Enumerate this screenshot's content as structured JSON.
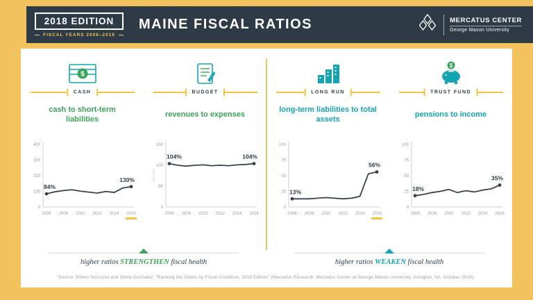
{
  "colors": {
    "background_yellow": "#F2C35C",
    "accent_yellow": "#F6C343",
    "navy": "#2E3B47",
    "green": "#3AA45B",
    "teal": "#14A5B4",
    "chart_line": "#37424D",
    "axis_gray": "#cfcfcf",
    "tick_text_gray": "#9b9b9b"
  },
  "header": {
    "edition": "2018 EDITION",
    "fiscal_years": "FISCAL YEARS 2006–2016",
    "title": "MAINE FISCAL RATIOS",
    "logo_name": "MERCATUS CENTER",
    "logo_sub": "George Mason University"
  },
  "sections": [
    {
      "label": "CASH",
      "subtitle": "cash to short-term liabilities",
      "theme": "green"
    },
    {
      "label": "BUDGET",
      "subtitle": "revenues to expenses",
      "theme": "green"
    },
    {
      "label": "LONG RUN",
      "subtitle": "long-term liabilities to total assets",
      "theme": "teal"
    },
    {
      "label": "TRUST FUND",
      "subtitle": "pensions to income",
      "theme": "teal"
    }
  ],
  "footer": {
    "left": {
      "prefix": "higher ratios",
      "keyword": "STRENGTHEN",
      "suffix": "fiscal health"
    },
    "right": {
      "prefix": "higher ratios",
      "keyword": "WEAKEN",
      "suffix": "fiscal health"
    }
  },
  "source": "Source: Eileen Norcross and Olivia Gonzalez, \"Ranking the States by Fiscal Condition, 2018 Edition\" (Mercatus Research, Mercatus Center at George Mason University, Arlington, VA, October 2018).",
  "chart_data": [
    {
      "type": "line",
      "title": "cash to short-term liabilities",
      "x": [
        2006,
        2007,
        2008,
        2009,
        2010,
        2011,
        2012,
        2013,
        2014,
        2015,
        2016
      ],
      "xticks": [
        2006,
        2008,
        2010,
        2012,
        2014,
        2016
      ],
      "values": [
        84,
        97,
        105,
        110,
        101,
        95,
        89,
        99,
        93,
        121,
        130
      ],
      "ylim": [
        0,
        400
      ],
      "yticks": [
        0,
        100,
        200,
        300,
        400
      ],
      "start_label": "84%",
      "end_label": "130%",
      "highlight_final_year": true
    },
    {
      "type": "line",
      "title": "revenues to expenses",
      "x": [
        2006,
        2007,
        2008,
        2009,
        2010,
        2011,
        2012,
        2013,
        2014,
        2015,
        2016
      ],
      "xticks": [
        2006,
        2008,
        2010,
        2012,
        2014,
        2016
      ],
      "values": [
        104,
        100,
        98,
        100,
        101,
        99,
        100,
        99,
        101,
        102,
        104
      ],
      "ylim": [
        0,
        150
      ],
      "yticks": [
        0,
        50,
        100,
        150
      ],
      "start_label": "104%",
      "end_label": "104%",
      "y_axis_label": "percent",
      "highlight_final_year": false
    },
    {
      "type": "line",
      "title": "long-term liabilities to total assets",
      "x": [
        2006,
        2007,
        2008,
        2009,
        2010,
        2011,
        2012,
        2013,
        2014,
        2015,
        2016
      ],
      "xticks": [
        2006,
        2008,
        2010,
        2012,
        2014,
        2016
      ],
      "values": [
        13,
        13,
        13,
        14,
        15,
        14,
        13,
        14,
        17,
        53,
        56
      ],
      "ylim": [
        0,
        100
      ],
      "yticks": [
        0,
        25,
        50,
        75,
        100
      ],
      "start_label": "13%",
      "end_label": "56%",
      "highlight_final_year": true
    },
    {
      "type": "line",
      "title": "pensions to income",
      "x": [
        2006,
        2007,
        2008,
        2009,
        2010,
        2011,
        2012,
        2013,
        2014,
        2015,
        2016
      ],
      "xticks": [
        2006,
        2008,
        2010,
        2012,
        2014,
        2016
      ],
      "values": [
        18,
        20,
        23,
        25,
        28,
        23,
        26,
        24,
        27,
        29,
        35
      ],
      "ylim": [
        0,
        100
      ],
      "yticks": [
        0,
        25,
        50,
        75,
        100
      ],
      "start_label": "18%",
      "end_label": "35%",
      "highlight_final_year": false
    }
  ]
}
